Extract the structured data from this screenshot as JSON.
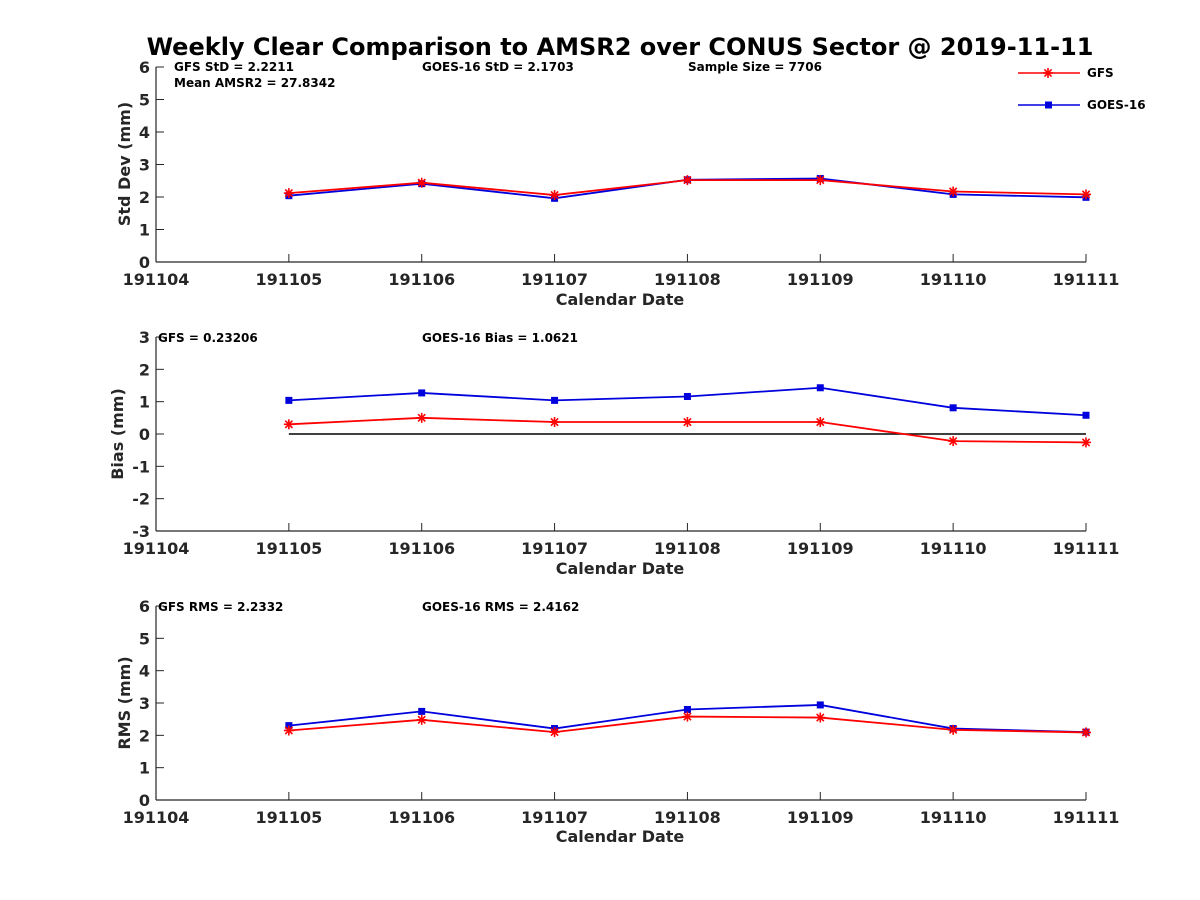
{
  "title": "Weekly Clear Comparison to AMSR2 over CONUS Sector @ 2019-11-11",
  "colors": {
    "GFS": "#ff0000",
    "GOES-16": "#0000dd",
    "zero_line": "#000000",
    "axis": "#262626"
  },
  "legend": {
    "placement": "top-right",
    "entries": [
      {
        "name": "GFS",
        "marker": "asterisk"
      },
      {
        "name": "GOES-16",
        "marker": "square"
      }
    ]
  },
  "chart_data": [
    {
      "type": "line",
      "xlabel": "Calendar Date",
      "ylabel": "Std Dev (mm)",
      "categories": [
        "191104",
        "191105",
        "191106",
        "191107",
        "191108",
        "191109",
        "191110",
        "191111"
      ],
      "ylim": [
        0,
        6
      ],
      "yticks": [
        "0",
        "1",
        "2",
        "3",
        "4",
        "5",
        "6"
      ],
      "series": [
        {
          "name": "GFS",
          "values": [
            null,
            2.12,
            2.44,
            2.06,
            2.52,
            2.52,
            2.17,
            2.08
          ]
        },
        {
          "name": "GOES-16",
          "values": [
            null,
            2.04,
            2.41,
            1.96,
            2.53,
            2.57,
            2.08,
            1.99
          ]
        }
      ],
      "annotations": [
        "GFS StD = 2.2211",
        "Mean AMSR2 = 27.8342",
        "GOES-16 StD = 2.1703",
        "Sample Size = 7706"
      ]
    },
    {
      "type": "line",
      "xlabel": "Calendar Date",
      "ylabel": "Bias (mm)",
      "categories": [
        "191104",
        "191105",
        "191106",
        "191107",
        "191108",
        "191109",
        "191110",
        "191111"
      ],
      "ylim": [
        -3,
        3
      ],
      "yticks": [
        "-3",
        "-2",
        "-1",
        "0",
        "1",
        "2",
        "3"
      ],
      "zero_line": true,
      "series": [
        {
          "name": "GFS",
          "values": [
            null,
            0.3,
            0.5,
            0.37,
            0.37,
            0.37,
            -0.22,
            -0.26
          ]
        },
        {
          "name": "GOES-16",
          "values": [
            null,
            1.04,
            1.27,
            1.04,
            1.16,
            1.43,
            0.81,
            0.58
          ]
        }
      ],
      "annotations": [
        "GFS = 0.23206",
        "GOES-16 Bias  = 1.0621"
      ]
    },
    {
      "type": "line",
      "xlabel": "Calendar Date",
      "ylabel": "RMS (mm)",
      "categories": [
        "191104",
        "191105",
        "191106",
        "191107",
        "191108",
        "191109",
        "191110",
        "191111"
      ],
      "ylim": [
        0,
        6
      ],
      "yticks": [
        "0",
        "1",
        "2",
        "3",
        "4",
        "5",
        "6"
      ],
      "series": [
        {
          "name": "GFS",
          "values": [
            null,
            2.15,
            2.48,
            2.1,
            2.58,
            2.55,
            2.17,
            2.09
          ]
        },
        {
          "name": "GOES-16",
          "values": [
            null,
            2.3,
            2.74,
            2.21,
            2.8,
            2.94,
            2.21,
            2.1
          ]
        }
      ],
      "annotations": [
        "GFS RMS = 2.2332",
        "GOES-16 RMS = 2.4162"
      ]
    }
  ]
}
